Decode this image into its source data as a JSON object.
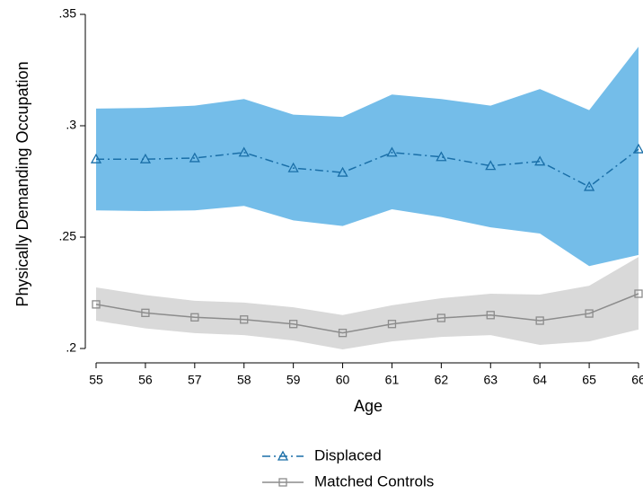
{
  "chart_data": {
    "type": "line",
    "y_label": "Physically Demanding Occupation",
    "x_label": "Age",
    "x": [
      55,
      56,
      57,
      58,
      59,
      60,
      61,
      62,
      63,
      64,
      65,
      66
    ],
    "xlim": [
      55,
      66
    ],
    "xticks": [
      55,
      56,
      57,
      58,
      59,
      60,
      61,
      62,
      63,
      64,
      65,
      66
    ],
    "ylim": [
      0.2,
      0.35
    ],
    "yticks": [
      {
        "value": 0.2,
        "label": ".2"
      },
      {
        "value": 0.25,
        "label": ".25"
      },
      {
        "value": 0.3,
        "label": ".3"
      },
      {
        "value": 0.35,
        "label": ".35"
      }
    ],
    "legend": "bottom",
    "series": [
      {
        "name": "Displaced",
        "color": "#1a6fa8",
        "band_color": "#74bde9",
        "marker": "triangle",
        "dash": "dashdot",
        "values": [
          0.285,
          0.285,
          0.2855,
          0.288,
          0.281,
          0.279,
          0.288,
          0.286,
          0.282,
          0.284,
          0.2726,
          0.2895
        ],
        "upper": [
          0.3077,
          0.308,
          0.309,
          0.312,
          0.305,
          0.304,
          0.314,
          0.312,
          0.309,
          0.3165,
          0.307,
          0.3355
        ],
        "lower": [
          0.262,
          0.2617,
          0.262,
          0.264,
          0.2575,
          0.255,
          0.2625,
          0.259,
          0.2544,
          0.2516,
          0.237,
          0.242
        ]
      },
      {
        "name": "Matched Controls",
        "color": "#8c8c8c",
        "band_color": "#d9d9d9",
        "marker": "square",
        "dash": "solid",
        "values": [
          0.2198,
          0.216,
          0.214,
          0.213,
          0.211,
          0.207,
          0.211,
          0.2137,
          0.215,
          0.2125,
          0.2157,
          0.2246
        ],
        "upper": [
          0.2274,
          0.224,
          0.2214,
          0.2206,
          0.2185,
          0.215,
          0.2194,
          0.2226,
          0.2246,
          0.2242,
          0.2282,
          0.2411
        ],
        "lower": [
          0.2125,
          0.209,
          0.2069,
          0.206,
          0.2036,
          0.1996,
          0.2032,
          0.2052,
          0.206,
          0.2016,
          0.2032,
          0.2085
        ]
      }
    ]
  }
}
